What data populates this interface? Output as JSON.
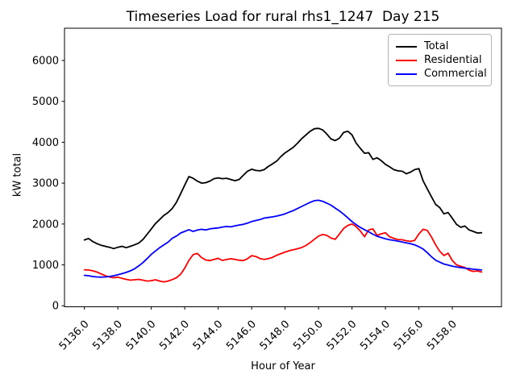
{
  "chart_data": {
    "type": "line",
    "title": "Timeseries Load for rural rhs1_1247  Day 215",
    "xlabel": "Hour of Year",
    "ylabel": "kW total",
    "grid": false,
    "background": "#ffffff",
    "spine_color": "#000000",
    "legend": {
      "position": "upper right",
      "border_color": "#b4b4b4"
    },
    "axis": {
      "xlim": [
        5134.81,
        5160.94
      ],
      "ylim": [
        -25,
        6790
      ]
    },
    "xticks": {
      "values": [
        5136,
        5138,
        5140,
        5142,
        5144,
        5146,
        5148,
        5150,
        5152,
        5154,
        5156,
        5158
      ],
      "labels": [
        "5136.0",
        "5138.0",
        "5140.0",
        "5142.0",
        "5144.0",
        "5146.0",
        "5148.0",
        "5150.0",
        "5152.0",
        "5154.0",
        "5156.0",
        "5158.0"
      ],
      "rotation": 45
    },
    "yticks": {
      "values": [
        0,
        1000,
        2000,
        3000,
        4000,
        5000,
        6000
      ],
      "labels": [
        "0",
        "1000",
        "2000",
        "3000",
        "4000",
        "5000",
        "6000"
      ]
    },
    "x": [
      5136.0,
      5136.25,
      5136.5,
      5136.75,
      5137.0,
      5137.25,
      5137.5,
      5137.75,
      5138.0,
      5138.25,
      5138.5,
      5138.75,
      5139.0,
      5139.25,
      5139.5,
      5139.75,
      5140.0,
      5140.25,
      5140.5,
      5140.75,
      5141.0,
      5141.25,
      5141.5,
      5141.75,
      5142.0,
      5142.25,
      5142.5,
      5142.75,
      5143.0,
      5143.25,
      5143.5,
      5143.75,
      5144.0,
      5144.25,
      5144.5,
      5144.75,
      5145.0,
      5145.25,
      5145.5,
      5145.75,
      5146.0,
      5146.25,
      5146.5,
      5146.75,
      5147.0,
      5147.25,
      5147.5,
      5147.75,
      5148.0,
      5148.25,
      5148.5,
      5148.75,
      5149.0,
      5149.25,
      5149.5,
      5149.75,
      5150.0,
      5150.25,
      5150.5,
      5150.75,
      5151.0,
      5151.25,
      5151.5,
      5151.75,
      5152.0,
      5152.25,
      5152.5,
      5152.75,
      5153.0,
      5153.25,
      5153.5,
      5153.75,
      5154.0,
      5154.25,
      5154.5,
      5154.75,
      5155.0,
      5155.25,
      5155.5,
      5155.75,
      5156.0,
      5156.25,
      5156.5,
      5156.75,
      5157.0,
      5157.25,
      5157.5,
      5157.75,
      5158.0,
      5158.25,
      5158.5,
      5158.75,
      5159.0,
      5159.25,
      5159.5,
      5159.75
    ],
    "series": [
      {
        "name": "Total",
        "color": "#000000",
        "values": [
          1610,
          1645,
          1570,
          1520,
          1480,
          1455,
          1430,
          1400,
          1430,
          1455,
          1420,
          1455,
          1490,
          1535,
          1620,
          1750,
          1880,
          2010,
          2110,
          2210,
          2280,
          2380,
          2530,
          2740,
          2950,
          3160,
          3120,
          3050,
          3000,
          3010,
          3050,
          3110,
          3130,
          3110,
          3120,
          3090,
          3060,
          3090,
          3190,
          3290,
          3340,
          3310,
          3300,
          3330,
          3410,
          3470,
          3540,
          3650,
          3740,
          3810,
          3880,
          3980,
          4090,
          4180,
          4270,
          4330,
          4340,
          4300,
          4200,
          4080,
          4040,
          4100,
          4240,
          4270,
          4180,
          3980,
          3850,
          3730,
          3745,
          3580,
          3620,
          3550,
          3460,
          3400,
          3330,
          3300,
          3290,
          3230,
          3270,
          3330,
          3355,
          3060,
          2860,
          2670,
          2480,
          2400,
          2250,
          2280,
          2140,
          1990,
          1920,
          1950,
          1855,
          1820,
          1780,
          1785
        ]
      },
      {
        "name": "Residential",
        "color": "#ff0000",
        "values": [
          880,
          875,
          855,
          825,
          780,
          735,
          705,
          685,
          700,
          670,
          645,
          625,
          635,
          645,
          625,
          605,
          615,
          635,
          605,
          585,
          605,
          640,
          685,
          770,
          920,
          1110,
          1250,
          1280,
          1180,
          1120,
          1105,
          1135,
          1160,
          1110,
          1130,
          1150,
          1135,
          1115,
          1105,
          1150,
          1225,
          1205,
          1155,
          1135,
          1155,
          1185,
          1235,
          1275,
          1315,
          1345,
          1370,
          1395,
          1425,
          1475,
          1545,
          1625,
          1705,
          1745,
          1720,
          1655,
          1625,
          1755,
          1890,
          1965,
          2000,
          1935,
          1830,
          1690,
          1855,
          1880,
          1720,
          1760,
          1785,
          1690,
          1650,
          1620,
          1615,
          1590,
          1575,
          1600,
          1755,
          1870,
          1845,
          1685,
          1490,
          1330,
          1230,
          1285,
          1110,
          1000,
          965,
          935,
          870,
          840,
          850,
          825
        ]
      },
      {
        "name": "Commercial",
        "color": "#0000ff",
        "values": [
          745,
          735,
          715,
          705,
          700,
          705,
          715,
          735,
          760,
          785,
          815,
          855,
          905,
          975,
          1055,
          1155,
          1260,
          1340,
          1420,
          1490,
          1555,
          1650,
          1705,
          1780,
          1820,
          1860,
          1820,
          1850,
          1870,
          1855,
          1880,
          1895,
          1905,
          1925,
          1940,
          1930,
          1955,
          1975,
          1990,
          2020,
          2060,
          2085,
          2110,
          2145,
          2160,
          2175,
          2195,
          2220,
          2250,
          2290,
          2330,
          2380,
          2430,
          2480,
          2530,
          2570,
          2580,
          2555,
          2510,
          2460,
          2390,
          2320,
          2240,
          2150,
          2060,
          1985,
          1915,
          1860,
          1810,
          1750,
          1700,
          1670,
          1640,
          1615,
          1600,
          1580,
          1560,
          1540,
          1520,
          1490,
          1445,
          1390,
          1300,
          1200,
          1115,
          1065,
          1020,
          995,
          970,
          950,
          935,
          920,
          910,
          895,
          885,
          875
        ]
      }
    ]
  }
}
